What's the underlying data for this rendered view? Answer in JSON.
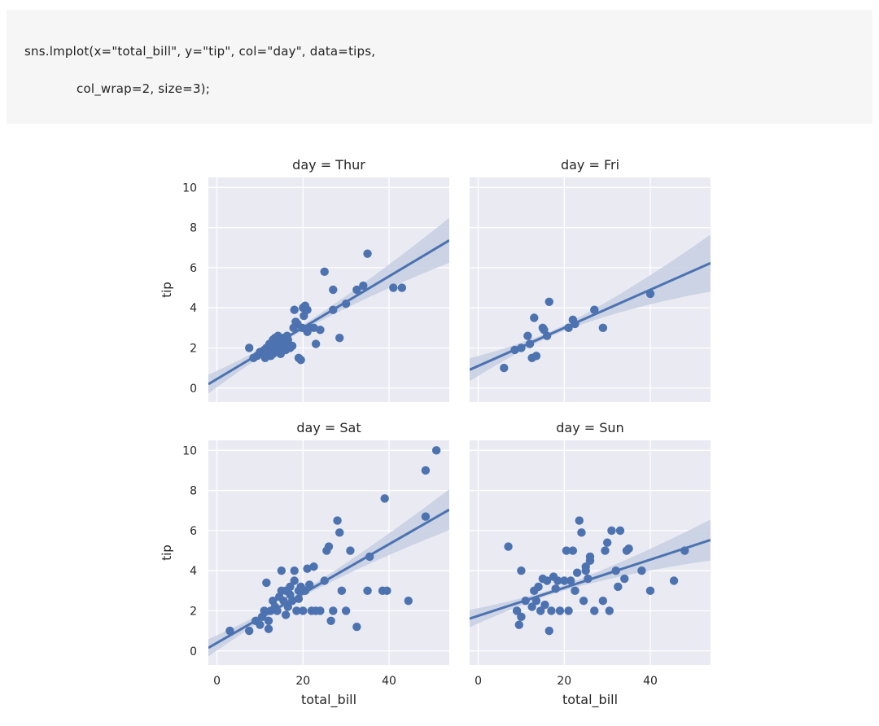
{
  "code": {
    "line1": "sns.lmplot(x=\"total_bill\", y=\"tip\", col=\"day\", data=tips,",
    "line2": "col_wrap=2, size=3);"
  },
  "colors": {
    "panel_bg": "#eaeaf2",
    "grid": "#ffffff",
    "point": "#4c72b0",
    "line": "#4c72b0",
    "band": "#c5cfe3"
  },
  "chart_data": [
    {
      "type": "scatter",
      "title": "day = Thur",
      "xlabel": "",
      "ylabel": "tip",
      "xlim": [
        -2,
        54
      ],
      "ylim": [
        -0.7,
        10.5
      ],
      "xticks": [],
      "yticks": [
        "0",
        "2",
        "4",
        "6",
        "8",
        "10"
      ],
      "regression": {
        "intercept": 0.45,
        "slope": 0.128
      },
      "band_halfwidth_at_max": 1.0,
      "points": [
        [
          7.5,
          2.0
        ],
        [
          8.5,
          1.5
        ],
        [
          9.3,
          1.6
        ],
        [
          10.0,
          1.8
        ],
        [
          10.3,
          1.7
        ],
        [
          11.0,
          1.9
        ],
        [
          11.2,
          1.5
        ],
        [
          11.5,
          2.0
        ],
        [
          12.0,
          1.8
        ],
        [
          12.2,
          2.2
        ],
        [
          12.5,
          1.6
        ],
        [
          12.7,
          2.0
        ],
        [
          13.0,
          1.7
        ],
        [
          13.0,
          2.4
        ],
        [
          13.3,
          2.0
        ],
        [
          13.5,
          2.5
        ],
        [
          13.8,
          1.8
        ],
        [
          14.0,
          2.1
        ],
        [
          14.2,
          2.6
        ],
        [
          14.5,
          2.0
        ],
        [
          14.8,
          1.7
        ],
        [
          15.0,
          2.3
        ],
        [
          15.2,
          2.0
        ],
        [
          15.5,
          2.5
        ],
        [
          16.0,
          2.2
        ],
        [
          16.0,
          1.9
        ],
        [
          16.3,
          2.6
        ],
        [
          16.5,
          2.4
        ],
        [
          17.0,
          2.0
        ],
        [
          17.5,
          2.1
        ],
        [
          17.8,
          3.0
        ],
        [
          18.0,
          3.9
        ],
        [
          18.3,
          3.3
        ],
        [
          18.7,
          3.2
        ],
        [
          19.0,
          1.5
        ],
        [
          19.5,
          1.4
        ],
        [
          19.8,
          3.0
        ],
        [
          20.0,
          4.0
        ],
        [
          20.2,
          3.6
        ],
        [
          20.5,
          4.1
        ],
        [
          21.0,
          3.9
        ],
        [
          21.0,
          2.8
        ],
        [
          21.5,
          3.0
        ],
        [
          22.5,
          3.0
        ],
        [
          23.0,
          2.2
        ],
        [
          24.0,
          2.9
        ],
        [
          25.0,
          5.8
        ],
        [
          27.0,
          4.9
        ],
        [
          27.0,
          3.9
        ],
        [
          28.5,
          2.5
        ],
        [
          30.0,
          4.2
        ],
        [
          32.5,
          4.9
        ],
        [
          34.0,
          5.1
        ],
        [
          35.0,
          6.7
        ],
        [
          41.0,
          5.0
        ],
        [
          43.0,
          5.0
        ]
      ]
    },
    {
      "type": "scatter",
      "title": "day = Fri",
      "xlabel": "",
      "ylabel": "",
      "xlim": [
        -2,
        54
      ],
      "ylim": [
        -0.7,
        10.5
      ],
      "xticks": [],
      "yticks": [],
      "regression": {
        "intercept": 1.1,
        "slope": 0.095
      },
      "band_halfwidth_at_max": 1.3,
      "points": [
        [
          6.0,
          1.0
        ],
        [
          8.5,
          1.9
        ],
        [
          10.0,
          2.0
        ],
        [
          11.5,
          2.6
        ],
        [
          12.0,
          2.2
        ],
        [
          12.5,
          1.5
        ],
        [
          13.0,
          3.5
        ],
        [
          13.5,
          1.6
        ],
        [
          15.0,
          3.0
        ],
        [
          15.3,
          2.9
        ],
        [
          16.0,
          2.6
        ],
        [
          16.5,
          4.3
        ],
        [
          21.0,
          3.0
        ],
        [
          22.0,
          3.4
        ],
        [
          22.5,
          3.2
        ],
        [
          27.0,
          3.9
        ],
        [
          29.0,
          3.0
        ],
        [
          40.0,
          4.7
        ]
      ]
    },
    {
      "type": "scatter",
      "title": "day = Sat",
      "xlabel": "total_bill",
      "ylabel": "tip",
      "xlim": [
        -2,
        54
      ],
      "ylim": [
        -0.7,
        10.5
      ],
      "xticks": [
        "0",
        "20",
        "40"
      ],
      "yticks": [
        "0",
        "2",
        "4",
        "6",
        "8",
        "10"
      ],
      "regression": {
        "intercept": 0.4,
        "slope": 0.123
      },
      "band_halfwidth_at_max": 0.9,
      "points": [
        [
          3.0,
          1.0
        ],
        [
          7.5,
          1.0
        ],
        [
          9.0,
          1.5
        ],
        [
          10.0,
          1.3
        ],
        [
          10.5,
          1.7
        ],
        [
          11.0,
          2.0
        ],
        [
          11.5,
          3.4
        ],
        [
          12.0,
          1.5
        ],
        [
          12.0,
          1.1
        ],
        [
          12.5,
          2.0
        ],
        [
          13.0,
          2.5
        ],
        [
          13.5,
          2.2
        ],
        [
          14.0,
          2.0
        ],
        [
          14.5,
          2.7
        ],
        [
          15.0,
          4.0
        ],
        [
          15.0,
          3.0
        ],
        [
          15.5,
          2.5
        ],
        [
          16.0,
          3.0
        ],
        [
          16.0,
          1.8
        ],
        [
          16.5,
          2.2
        ],
        [
          17.0,
          2.8
        ],
        [
          17.0,
          3.2
        ],
        [
          17.5,
          2.5
        ],
        [
          18.0,
          3.5
        ],
        [
          18.0,
          4.0
        ],
        [
          18.5,
          2.0
        ],
        [
          19.0,
          3.0
        ],
        [
          19.0,
          2.6
        ],
        [
          19.5,
          3.2
        ],
        [
          20.0,
          2.0
        ],
        [
          20.5,
          3.0
        ],
        [
          21.0,
          4.1
        ],
        [
          21.5,
          3.3
        ],
        [
          22.0,
          2.0
        ],
        [
          22.5,
          4.2
        ],
        [
          23.0,
          2.0
        ],
        [
          24.0,
          2.0
        ],
        [
          25.0,
          3.5
        ],
        [
          25.5,
          5.0
        ],
        [
          26.0,
          5.2
        ],
        [
          26.5,
          1.5
        ],
        [
          27.0,
          2.0
        ],
        [
          28.0,
          6.5
        ],
        [
          28.5,
          5.9
        ],
        [
          29.0,
          3.0
        ],
        [
          30.0,
          2.0
        ],
        [
          31.0,
          5.0
        ],
        [
          32.5,
          1.2
        ],
        [
          35.5,
          4.7
        ],
        [
          38.5,
          3.0
        ],
        [
          39.0,
          7.6
        ],
        [
          44.5,
          2.5
        ],
        [
          48.5,
          9.0
        ],
        [
          48.5,
          6.7
        ],
        [
          51.0,
          10.0
        ],
        [
          39.5,
          3.0
        ],
        [
          35.0,
          3.0
        ]
      ]
    },
    {
      "type": "scatter",
      "title": "day = Sun",
      "xlabel": "total_bill",
      "ylabel": "",
      "xlim": [
        -2,
        54
      ],
      "ylim": [
        -0.7,
        10.5
      ],
      "xticks": [
        "0",
        "20",
        "40"
      ],
      "yticks": [],
      "regression": {
        "intercept": 1.75,
        "slope": 0.07
      },
      "band_halfwidth_at_max": 0.9,
      "points": [
        [
          7.0,
          5.2
        ],
        [
          9.0,
          2.0
        ],
        [
          9.5,
          1.3
        ],
        [
          10.0,
          4.0
        ],
        [
          10.0,
          1.7
        ],
        [
          11.0,
          2.5
        ],
        [
          12.5,
          2.2
        ],
        [
          13.0,
          3.0
        ],
        [
          13.5,
          2.5
        ],
        [
          14.0,
          3.2
        ],
        [
          14.5,
          2.0
        ],
        [
          15.0,
          3.6
        ],
        [
          15.5,
          2.3
        ],
        [
          16.0,
          3.5
        ],
        [
          16.5,
          1.0
        ],
        [
          17.0,
          2.0
        ],
        [
          17.5,
          3.7
        ],
        [
          18.0,
          3.1
        ],
        [
          18.5,
          3.5
        ],
        [
          19.0,
          2.0
        ],
        [
          20.0,
          3.5
        ],
        [
          20.5,
          5.0
        ],
        [
          21.0,
          2.0
        ],
        [
          21.5,
          3.5
        ],
        [
          22.0,
          5.0
        ],
        [
          22.5,
          3.0
        ],
        [
          23.0,
          3.9
        ],
        [
          23.5,
          6.5
        ],
        [
          24.0,
          5.9
        ],
        [
          24.5,
          2.5
        ],
        [
          25.0,
          4.0
        ],
        [
          25.5,
          3.6
        ],
        [
          26.0,
          4.7
        ],
        [
          27.0,
          2.0
        ],
        [
          29.0,
          2.5
        ],
        [
          29.5,
          5.0
        ],
        [
          30.0,
          5.4
        ],
        [
          30.5,
          2.0
        ],
        [
          31.0,
          6.0
        ],
        [
          32.0,
          4.0
        ],
        [
          32.5,
          3.2
        ],
        [
          33.0,
          6.0
        ],
        [
          34.0,
          3.6
        ],
        [
          34.5,
          5.0
        ],
        [
          35.0,
          5.1
        ],
        [
          38.0,
          4.0
        ],
        [
          40.0,
          3.0
        ],
        [
          45.5,
          3.5
        ],
        [
          48.0,
          5.0
        ],
        [
          26.0,
          4.5
        ],
        [
          25.0,
          4.2
        ]
      ]
    }
  ]
}
